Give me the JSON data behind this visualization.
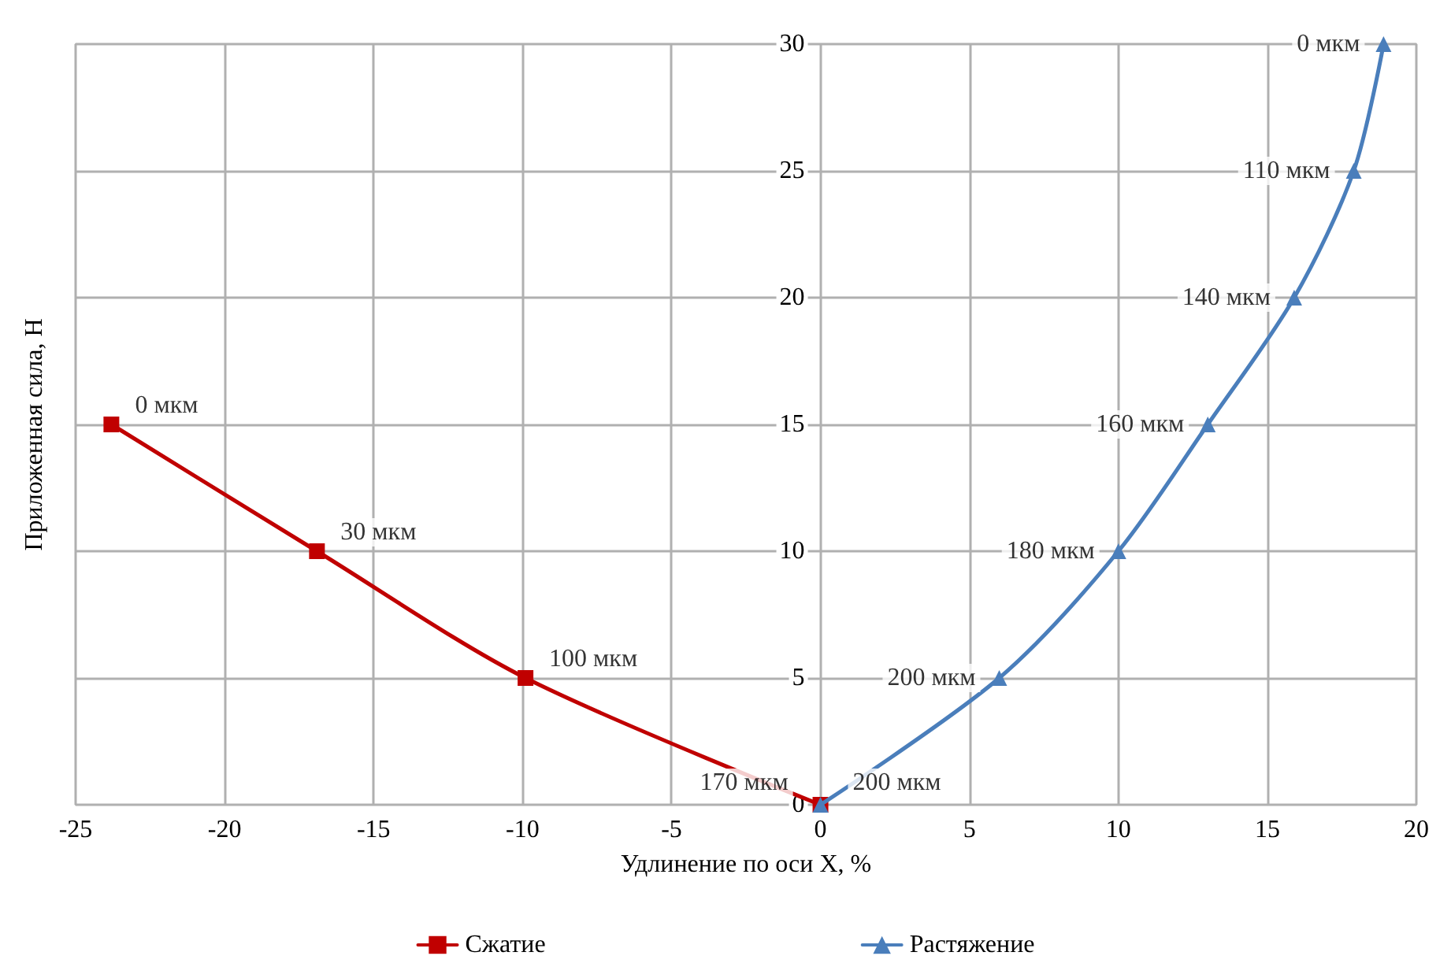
{
  "chart_data": {
    "type": "line",
    "xlabel": "Удлинение по оси X, %",
    "ylabel": "Приложенная сила, Н",
    "xlim": [
      -25,
      20
    ],
    "xticks": [
      -25,
      -20,
      -15,
      -10,
      -5,
      0,
      5,
      10,
      15,
      20
    ],
    "ylim": [
      0,
      30
    ],
    "yticks": [
      0,
      5,
      10,
      15,
      20,
      25,
      30
    ],
    "grid": true,
    "legend": "bottom",
    "series": [
      {
        "name": "Сжатие",
        "color": "#c00000",
        "marker": "square",
        "x": [
          -23.8,
          -16.9,
          -9.9,
          0
        ],
        "values": [
          15,
          10,
          5,
          0
        ]
      },
      {
        "name": "Растяжение",
        "color": "#4a7ebb",
        "marker": "triangle",
        "x": [
          0,
          6,
          10,
          13,
          15.9,
          17.9,
          18.9
        ],
        "values": [
          0,
          5,
          10,
          15,
          20,
          25,
          30
        ]
      }
    ],
    "annotations": [
      {
        "text": "0 мкм",
        "x": -23.8,
        "y": 15
      },
      {
        "text": "30 мкм",
        "x": -16.9,
        "y": 10
      },
      {
        "text": "100 мкм",
        "x": -9.9,
        "y": 5
      },
      {
        "text": "170 мкм",
        "x": -0.5,
        "y": 0
      },
      {
        "text": "200 мкм",
        "x": 0.5,
        "y": 0
      },
      {
        "text": "200 мкм",
        "x": 6,
        "y": 5
      },
      {
        "text": "180 мкм",
        "x": 10,
        "y": 10
      },
      {
        "text": "160 мкм",
        "x": 13,
        "y": 15
      },
      {
        "text": "140 мкм",
        "x": 15.9,
        "y": 20
      },
      {
        "text": "110 мкм",
        "x": 17.9,
        "y": 25
      },
      {
        "text": "0 мкм",
        "x": 18.9,
        "y": 30
      }
    ]
  }
}
